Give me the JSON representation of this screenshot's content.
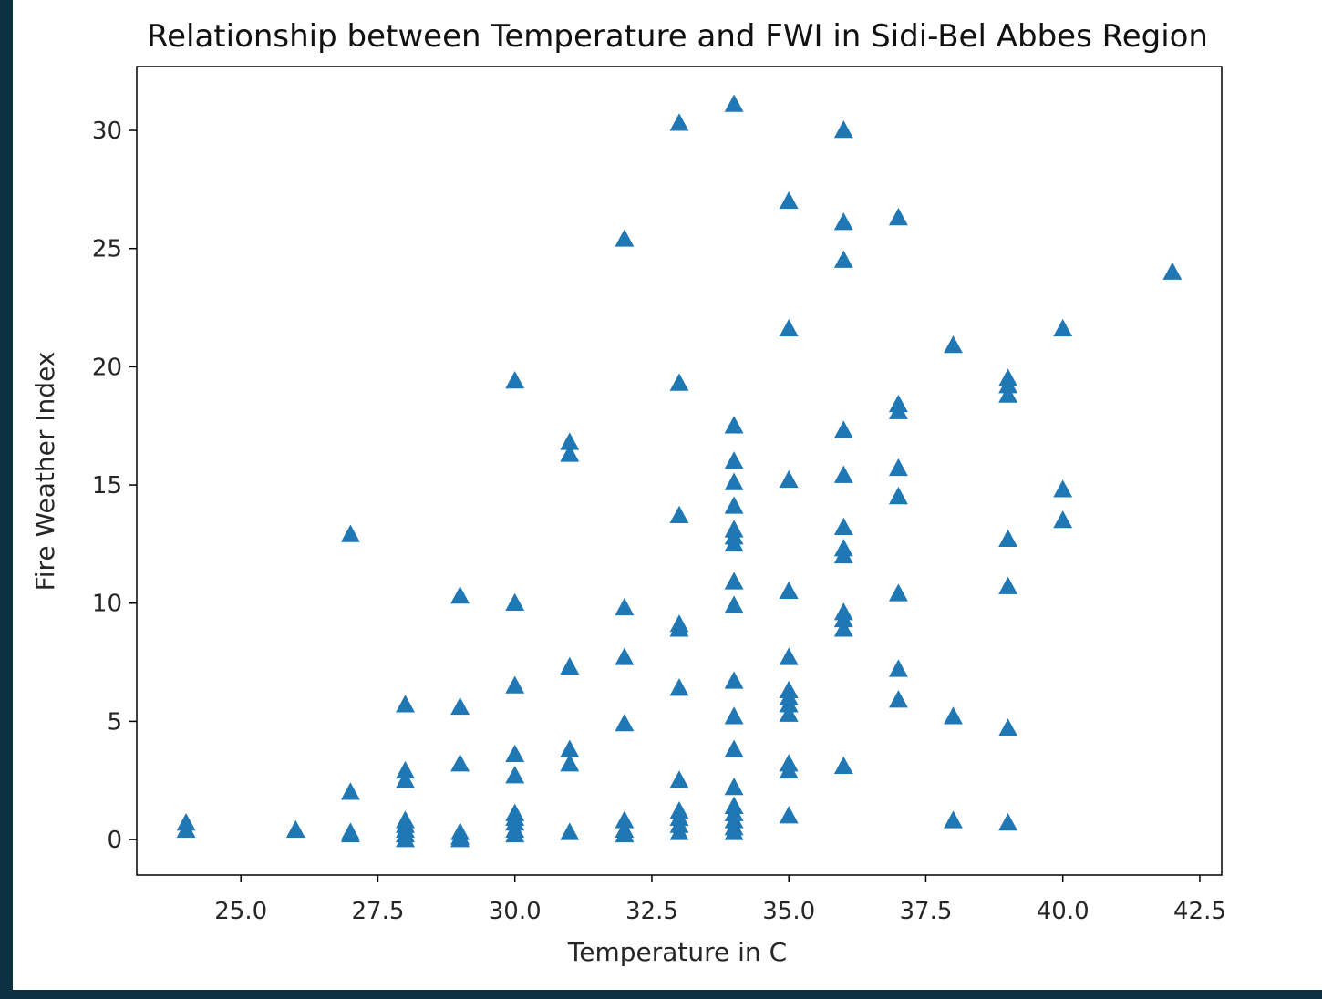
{
  "chart_data": {
    "type": "scatter",
    "title": "Relationship between Temperature and FWI in Sidi-Bel Abbes Region",
    "xlabel": "Temperature in C",
    "ylabel": "Fire Weather Index",
    "xlim": [
      23.1,
      42.9
    ],
    "ylim": [
      -1.5,
      32.7
    ],
    "xticks": [
      "25.0",
      "27.5",
      "30.0",
      "32.5",
      "35.0",
      "37.5",
      "40.0",
      "42.5"
    ],
    "yticks": [
      "0",
      "5",
      "10",
      "15",
      "20",
      "25",
      "30"
    ],
    "grid": false,
    "legend": "none",
    "marker": "triangle",
    "color": "#1f77b4",
    "series": [
      {
        "points": [
          [
            24,
            0.4
          ],
          [
            24,
            0.7
          ],
          [
            26,
            0.4
          ],
          [
            27,
            0.2
          ],
          [
            27,
            0.3
          ],
          [
            27,
            2.0
          ],
          [
            27,
            12.9
          ],
          [
            28,
            0.0
          ],
          [
            28,
            0.2
          ],
          [
            28,
            0.4
          ],
          [
            28,
            0.6
          ],
          [
            28,
            0.8
          ],
          [
            28,
            2.5
          ],
          [
            28,
            2.9
          ],
          [
            28,
            5.7
          ],
          [
            29,
            0.0
          ],
          [
            29,
            0.1
          ],
          [
            29,
            0.3
          ],
          [
            29,
            3.2
          ],
          [
            29,
            5.6
          ],
          [
            29,
            10.3
          ],
          [
            30,
            0.2
          ],
          [
            30,
            0.4
          ],
          [
            30,
            0.7
          ],
          [
            30,
            0.9
          ],
          [
            30,
            1.1
          ],
          [
            30,
            2.7
          ],
          [
            30,
            3.6
          ],
          [
            30,
            6.5
          ],
          [
            30,
            10.0
          ],
          [
            30,
            19.4
          ],
          [
            31,
            0.3
          ],
          [
            31,
            3.2
          ],
          [
            31,
            3.8
          ],
          [
            31,
            7.3
          ],
          [
            31,
            16.3
          ],
          [
            31,
            16.8
          ],
          [
            32,
            0.2
          ],
          [
            32,
            0.4
          ],
          [
            32,
            0.8
          ],
          [
            32,
            4.9
          ],
          [
            32,
            7.7
          ],
          [
            32,
            9.8
          ],
          [
            32,
            25.4
          ],
          [
            33,
            0.3
          ],
          [
            33,
            0.6
          ],
          [
            33,
            0.9
          ],
          [
            33,
            1.2
          ],
          [
            33,
            2.5
          ],
          [
            33,
            6.4
          ],
          [
            33,
            8.9
          ],
          [
            33,
            9.1
          ],
          [
            33,
            13.7
          ],
          [
            33,
            19.3
          ],
          [
            33,
            30.3
          ],
          [
            34,
            0.3
          ],
          [
            34,
            0.5
          ],
          [
            34,
            0.8
          ],
          [
            34,
            1.1
          ],
          [
            34,
            1.4
          ],
          [
            34,
            2.2
          ],
          [
            34,
            3.8
          ],
          [
            34,
            5.2
          ],
          [
            34,
            6.7
          ],
          [
            34,
            9.9
          ],
          [
            34,
            10.9
          ],
          [
            34,
            12.5
          ],
          [
            34,
            12.8
          ],
          [
            34,
            13.1
          ],
          [
            34,
            14.1
          ],
          [
            34,
            15.1
          ],
          [
            34,
            16.0
          ],
          [
            34,
            17.5
          ],
          [
            34,
            31.1
          ],
          [
            35,
            1.0
          ],
          [
            35,
            2.9
          ],
          [
            35,
            3.2
          ],
          [
            35,
            5.3
          ],
          [
            35,
            5.7
          ],
          [
            35,
            6.0
          ],
          [
            35,
            6.3
          ],
          [
            35,
            7.7
          ],
          [
            35,
            10.5
          ],
          [
            35,
            15.2
          ],
          [
            35,
            21.6
          ],
          [
            35,
            27.0
          ],
          [
            36,
            3.1
          ],
          [
            36,
            8.9
          ],
          [
            36,
            9.3
          ],
          [
            36,
            9.6
          ],
          [
            36,
            12.0
          ],
          [
            36,
            12.3
          ],
          [
            36,
            13.2
          ],
          [
            36,
            15.4
          ],
          [
            36,
            17.3
          ],
          [
            36,
            24.5
          ],
          [
            36,
            26.1
          ],
          [
            36,
            30.0
          ],
          [
            37,
            5.9
          ],
          [
            37,
            7.2
          ],
          [
            37,
            10.4
          ],
          [
            37,
            14.5
          ],
          [
            37,
            15.7
          ],
          [
            37,
            18.1
          ],
          [
            37,
            18.4
          ],
          [
            37,
            26.3
          ],
          [
            38,
            0.8
          ],
          [
            38,
            5.2
          ],
          [
            38,
            20.9
          ],
          [
            39,
            0.7
          ],
          [
            39,
            4.7
          ],
          [
            39,
            10.7
          ],
          [
            39,
            12.7
          ],
          [
            39,
            18.8
          ],
          [
            39,
            19.2
          ],
          [
            39,
            19.5
          ],
          [
            40,
            13.5
          ],
          [
            40,
            14.8
          ],
          [
            40,
            21.6
          ],
          [
            42,
            24.0
          ]
        ]
      }
    ]
  }
}
